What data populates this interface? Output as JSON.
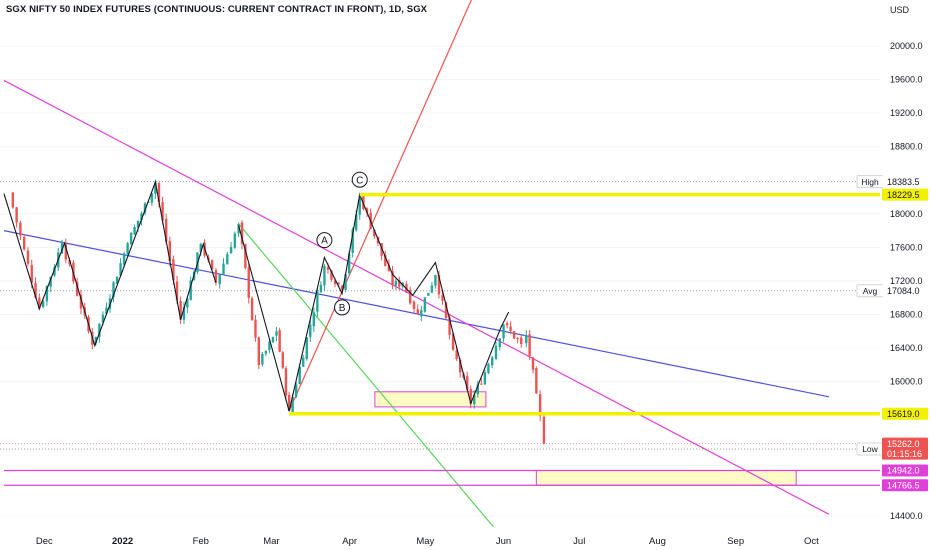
{
  "chart_title": "SGX NIFTY 50 INDEX FUTURES (CONTINUOUS: CURRENT CONTRACT IN FRONT), 1D, SGX",
  "currency_label": "USD",
  "colors": {
    "up": "#26a69a",
    "down": "#ef5350",
    "yellow": "#f2f200",
    "magenta": "#e040d8",
    "blue": "#4c4fe0",
    "green": "#5ad45a",
    "red_line": "#ef5350",
    "black": "#131722",
    "grid": "#f0f3fa",
    "axis_text": "#131722",
    "zone_fill": "#fffbc4"
  },
  "chart_data": {
    "type": "candlestick",
    "title": "SGX NIFTY 50 INDEX FUTURES (CONTINUOUS: CURRENT CONTRACT IN FRONT), 1D, SGX",
    "y_axis": {
      "unit": "USD",
      "min": 14300,
      "max": 20600,
      "ticks": [
        14400,
        16000,
        16400,
        16800,
        17200,
        17600,
        18000,
        18800,
        19200,
        19600,
        20000
      ]
    },
    "x_axis": {
      "ticks": [
        "Dec",
        "2022",
        "Feb",
        "Mar",
        "Apr",
        "May",
        "Jun",
        "Jul",
        "Aug",
        "Sep",
        "Oct"
      ]
    },
    "pivots": [
      {
        "date": "2021-11-17",
        "price": 18250
      },
      {
        "date": "2021-11-29",
        "price": 16870
      },
      {
        "date": "2021-12-08",
        "price": 17660
      },
      {
        "date": "2021-12-20",
        "price": 16440
      },
      {
        "date": "2022-01-03",
        "price": 17650
      },
      {
        "date": "2022-01-14",
        "price": 18370
      },
      {
        "date": "2022-01-24",
        "price": 16740
      },
      {
        "date": "2022-02-01",
        "price": 17640
      },
      {
        "date": "2022-02-07",
        "price": 17180
      },
      {
        "date": "2022-02-16",
        "price": 17880
      },
      {
        "date": "2022-02-24",
        "price": 16200
      },
      {
        "date": "2022-03-03",
        "price": 16600
      },
      {
        "date": "2022-03-08",
        "price": 15650
      },
      {
        "date": "2022-03-22",
        "price": 17380
      },
      {
        "date": "2022-03-29",
        "price": 17100
      },
      {
        "date": "2022-04-05",
        "price": 18220
      },
      {
        "date": "2022-04-18",
        "price": 17150
      },
      {
        "date": "2022-04-22",
        "price": 17180
      },
      {
        "date": "2022-04-28",
        "price": 16800
      },
      {
        "date": "2022-05-05",
        "price": 17270
      },
      {
        "date": "2022-05-12",
        "price": 16380
      },
      {
        "date": "2022-05-19",
        "price": 15740
      },
      {
        "date": "2022-05-26",
        "price": 16210
      },
      {
        "date": "2022-06-01",
        "price": 16680
      },
      {
        "date": "2022-06-08",
        "price": 16450
      },
      {
        "date": "2022-06-10",
        "price": 16550
      },
      {
        "date": "2022-06-14",
        "price": 15860
      },
      {
        "date": "2022-06-17",
        "price": 15262
      }
    ],
    "horizontal_levels": [
      {
        "price": 18229.5,
        "label": "18229.5",
        "color": "yellow",
        "from_date": "2022-04-05"
      },
      {
        "price": 15619.0,
        "label": "15619.0",
        "color": "yellow",
        "from_date": "2022-03-08"
      },
      {
        "price": 14942.0,
        "label": "14942.0",
        "color": "magenta",
        "from_date": "2021-11-15"
      },
      {
        "price": 14766.5,
        "label": "14766.5",
        "color": "magenta",
        "from_date": "2021-11-15"
      }
    ],
    "dotted_levels": [
      {
        "price": 18383.5,
        "label": "18383.5",
        "tag": "High"
      },
      {
        "price": 17084.0,
        "label": "17084.0",
        "tag": "Avg"
      },
      {
        "price": 15198.5,
        "label": "15198.5",
        "tag": "Low"
      },
      {
        "price": 15262.0,
        "label": "15262.0",
        "tag": ""
      }
    ],
    "last_price": {
      "value": "15262.0",
      "countdown": "01:15:16"
    },
    "trendlines": [
      {
        "name": "blue-trendline",
        "color": "blue",
        "start": {
          "date": "2021-11-15",
          "price": 17800
        },
        "end": {
          "date": "2022-10-08",
          "price": 15820
        }
      },
      {
        "name": "magenta-trendline",
        "color": "magenta",
        "start": {
          "date": "2021-11-15",
          "price": 19590
        },
        "end": {
          "date": "2022-10-08",
          "price": 14420
        }
      },
      {
        "name": "green-trendline",
        "color": "green",
        "start": {
          "date": "2022-02-16",
          "price": 17880
        },
        "end": {
          "date": "2022-05-28",
          "price": 14270
        }
      },
      {
        "name": "red-trendline",
        "color": "red_line",
        "start": {
          "date": "2022-03-08",
          "price": 15650
        },
        "end": {
          "date": "2022-05-20",
          "price": 20600
        }
      }
    ],
    "zigzag_black": [
      {
        "date": "2021-11-15",
        "price": 18240
      },
      {
        "date": "2021-11-29",
        "price": 16870
      },
      {
        "date": "2021-12-09",
        "price": 17650
      },
      {
        "date": "2021-12-21",
        "price": 16430
      },
      {
        "date": "2022-01-14",
        "price": 18380
      },
      {
        "date": "2022-01-24",
        "price": 16740
      },
      {
        "date": "2022-02-02",
        "price": 17640
      },
      {
        "date": "2022-02-07",
        "price": 17180
      }
    ],
    "abc_pattern": [
      {
        "date": "2022-02-16",
        "price": 17860
      },
      {
        "date": "2022-03-08",
        "price": 15650
      },
      {
        "date": "2022-03-22",
        "price": 17480
      },
      {
        "date": "2022-03-29",
        "price": 17050
      },
      {
        "date": "2022-04-05",
        "price": 18230
      },
      {
        "date": "2022-04-18",
        "price": 17280
      },
      {
        "date": "2022-04-26",
        "price": 17030
      },
      {
        "date": "2022-05-05",
        "price": 17420
      },
      {
        "date": "2022-05-19",
        "price": 15740
      },
      {
        "date": "2022-05-31",
        "price": 16650
      },
      {
        "date": "2022-06-03",
        "price": 16830
      }
    ],
    "wave_labels": [
      {
        "text": "A",
        "date": "2022-03-22",
        "price": 17520,
        "pos": "above"
      },
      {
        "text": "B",
        "date": "2022-03-29",
        "price": 17040,
        "pos": "below"
      },
      {
        "text": "C",
        "date": "2022-04-05",
        "price": 18240,
        "pos": "above"
      }
    ],
    "zones": [
      {
        "name": "zone-may",
        "from_date": "2022-04-11",
        "to_date": "2022-05-25",
        "top": 15880,
        "bottom": 15700,
        "border": "magenta"
      },
      {
        "name": "zone-target",
        "from_date": "2022-06-14",
        "to_date": "2022-09-25",
        "top": 14942,
        "bottom": 14766.5,
        "border": "magenta"
      }
    ]
  }
}
